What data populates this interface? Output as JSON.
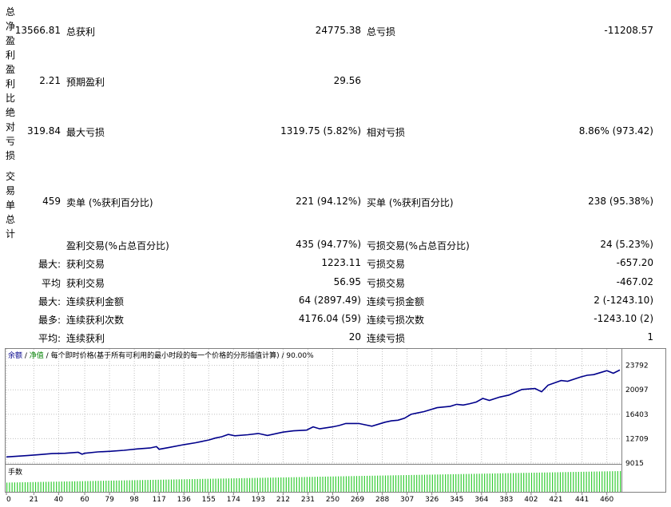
{
  "report": {
    "side_labels": {
      "net_profit": "总净盈利",
      "profit_factor": "盈利比",
      "absolute_drawdown": "绝对亏损",
      "total_trades": "交易单总计"
    },
    "net_profit": {
      "value": "13566.81",
      "gross_profit_label": "总获利",
      "gross_profit_value": "24775.38",
      "gross_loss_label": "总亏损",
      "gross_loss_value": "-11208.57"
    },
    "profit_factor": {
      "value": "2.21",
      "expected_label": "预期盈利",
      "expected_value": "29.56"
    },
    "drawdown": {
      "value": "319.84",
      "max_label": "最大亏损",
      "max_value": "1319.75 (5.82%)",
      "rel_label": "相对亏损",
      "rel_value": "8.86% (973.42)"
    },
    "trades": {
      "value": "459",
      "short_label": "卖单 (%获利百分比)",
      "short_value": "221 (94.12%)",
      "long_label": "买单 (%获利百分比)",
      "long_value": "238 (95.38%)"
    },
    "rows": [
      {
        "prefix": "",
        "label1": "盈利交易(%占总百分比)",
        "value1": "435 (94.77%)",
        "label2": "亏损交易(%占总百分比)",
        "value2": "24 (5.23%)"
      },
      {
        "prefix": "最大:",
        "label1": "获利交易",
        "value1": "1223.11",
        "label2": "亏损交易",
        "value2": "-657.20"
      },
      {
        "prefix": "平均",
        "label1": "获利交易",
        "value1": "56.95",
        "label2": "亏损交易",
        "value2": "-467.02"
      },
      {
        "prefix": "最大:",
        "label1": "连续获利金额",
        "value1": "64 (2897.49)",
        "label2": "连续亏损金额",
        "value2": "2 (-1243.10)"
      },
      {
        "prefix": "最多:",
        "label1": "连续获利次数",
        "value1": "4176.04 (59)",
        "label2": "连续亏损次数",
        "value2": "-1243.10 (2)"
      },
      {
        "prefix": "平均:",
        "label1": "连续获利",
        "value1": "20",
        "label2": "连续亏损",
        "value2": "1"
      }
    ]
  },
  "chart": {
    "title": {
      "balance": "余额",
      "sep1": " / ",
      "equity": "净值",
      "sep2": " / ",
      "rest": "每个即时价格(基于所有可利用的最小时段的每一个价格的分形插值计算) / 90.00%"
    },
    "volume_label": "手数",
    "colors": {
      "balance": "#00008b",
      "equity": "#008000",
      "volume": "#33cc33",
      "grid": "#c0c0c0"
    }
  },
  "chart_data": {
    "type": "line",
    "ylim": [
      9015,
      25200
    ],
    "y_ticks": [
      "23792",
      "20097",
      "16403",
      "12709",
      "9015"
    ],
    "y_tick_values": [
      23792,
      20097,
      16403,
      12709,
      9015
    ],
    "x_ticks": [
      "0",
      "21",
      "40",
      "60",
      "79",
      "98",
      "117",
      "136",
      "155",
      "174",
      "193",
      "212",
      "231",
      "250",
      "269",
      "288",
      "307",
      "326",
      "345",
      "364",
      "383",
      "402",
      "421",
      "441",
      "460"
    ],
    "x_tick_values": [
      0,
      21,
      40,
      60,
      79,
      98,
      117,
      136,
      155,
      174,
      193,
      212,
      231,
      250,
      269,
      288,
      307,
      326,
      345,
      364,
      383,
      402,
      421,
      441,
      460
    ],
    "xlim": [
      0,
      470
    ],
    "series": [
      {
        "name": "余额",
        "x": [
          0,
          8,
          16,
          25,
          35,
          45,
          55,
          58,
          60,
          70,
          80,
          90,
          100,
          110,
          115,
          117,
          125,
          136,
          145,
          150,
          155,
          160,
          165,
          170,
          175,
          185,
          193,
          200,
          212,
          220,
          230,
          235,
          240,
          250,
          255,
          260,
          270,
          280,
          290,
          295,
          300,
          305,
          310,
          315,
          320,
          330,
          340,
          345,
          350,
          355,
          360,
          365,
          370,
          378,
          385,
          395,
          405,
          410,
          415,
          420,
          425,
          430,
          440,
          445,
          450,
          455,
          460,
          465,
          470
        ],
        "y": [
          9950,
          10050,
          10150,
          10300,
          10450,
          10500,
          10650,
          10350,
          10500,
          10700,
          10800,
          10950,
          11150,
          11300,
          11500,
          11100,
          11400,
          11800,
          12100,
          12300,
          12500,
          12800,
          13000,
          13350,
          13150,
          13300,
          13500,
          13200,
          13700,
          13900,
          14000,
          14500,
          14200,
          14500,
          14700,
          15000,
          15000,
          14600,
          15200,
          15400,
          15500,
          15800,
          16400,
          16600,
          16800,
          17400,
          17600,
          17900,
          17800,
          18000,
          18250,
          18800,
          18500,
          19000,
          19300,
          20150,
          20300,
          19800,
          20800,
          21150,
          21500,
          21400,
          22050,
          22300,
          22400,
          22700,
          23000,
          22600,
          23100
        ]
      }
    ],
    "volume": {
      "name": "手数",
      "min": 0.1,
      "max": 1.0
    }
  }
}
